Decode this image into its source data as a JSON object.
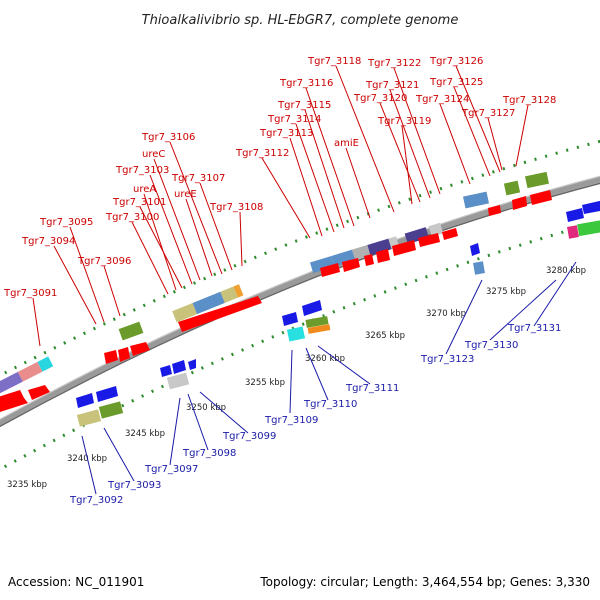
{
  "title": "Thioalkalivibrio sp. HL-EbGR7, complete genome",
  "footer": {
    "accession": "Accession: NC_011901",
    "summary": "Topology: circular; Length: 3,464,554 bp; Genes: 3,330"
  },
  "colors": {
    "forward_cds": "#ff0000",
    "reverse_cds": "#1a1ae6",
    "backbone": "#9a9a9a",
    "dotted_track": "#2e8b2e",
    "label_forward": "#cc0000",
    "label_reverse": "#1a1aa8"
  },
  "scale_labels": [
    "3235 kbp",
    "3240 kbp",
    "3245 kbp",
    "3250 kbp",
    "3255 kbp",
    "3260 kbp",
    "3265 kbp",
    "3270 kbp",
    "3275 kbp",
    "3280 kbp"
  ],
  "forward_labels": [
    "Tgr7_3091",
    "Tgr7_3094",
    "Tgr7_3095",
    "Tgr7_3096",
    "Tgr7_3100",
    "ureA",
    "Tgr7_3101",
    "Tgr7_3103",
    "ureC",
    "Tgr7_3106",
    "ureE",
    "Tgr7_3107",
    "Tgr7_3108",
    "Tgr7_3112",
    "Tgr7_3113",
    "Tgr7_3114",
    "Tgr7_3115",
    "Tgr7_3116",
    "Tgr7_3118",
    "amiE",
    "Tgr7_3119",
    "Tgr7_3120",
    "Tgr7_3121",
    "Tgr7_3122",
    "Tgr7_3124",
    "Tgr7_3125",
    "Tgr7_3126",
    "Tgr7_3127",
    "Tgr7_3128"
  ],
  "reverse_labels": [
    "Tgr7_3092",
    "Tgr7_3093",
    "Tgr7_3097",
    "Tgr7_3098",
    "Tgr7_3099",
    "Tgr7_3109",
    "Tgr7_3110",
    "Tgr7_3111",
    "Tgr7_3123",
    "Tgr7_3130",
    "Tgr7_3131"
  ]
}
